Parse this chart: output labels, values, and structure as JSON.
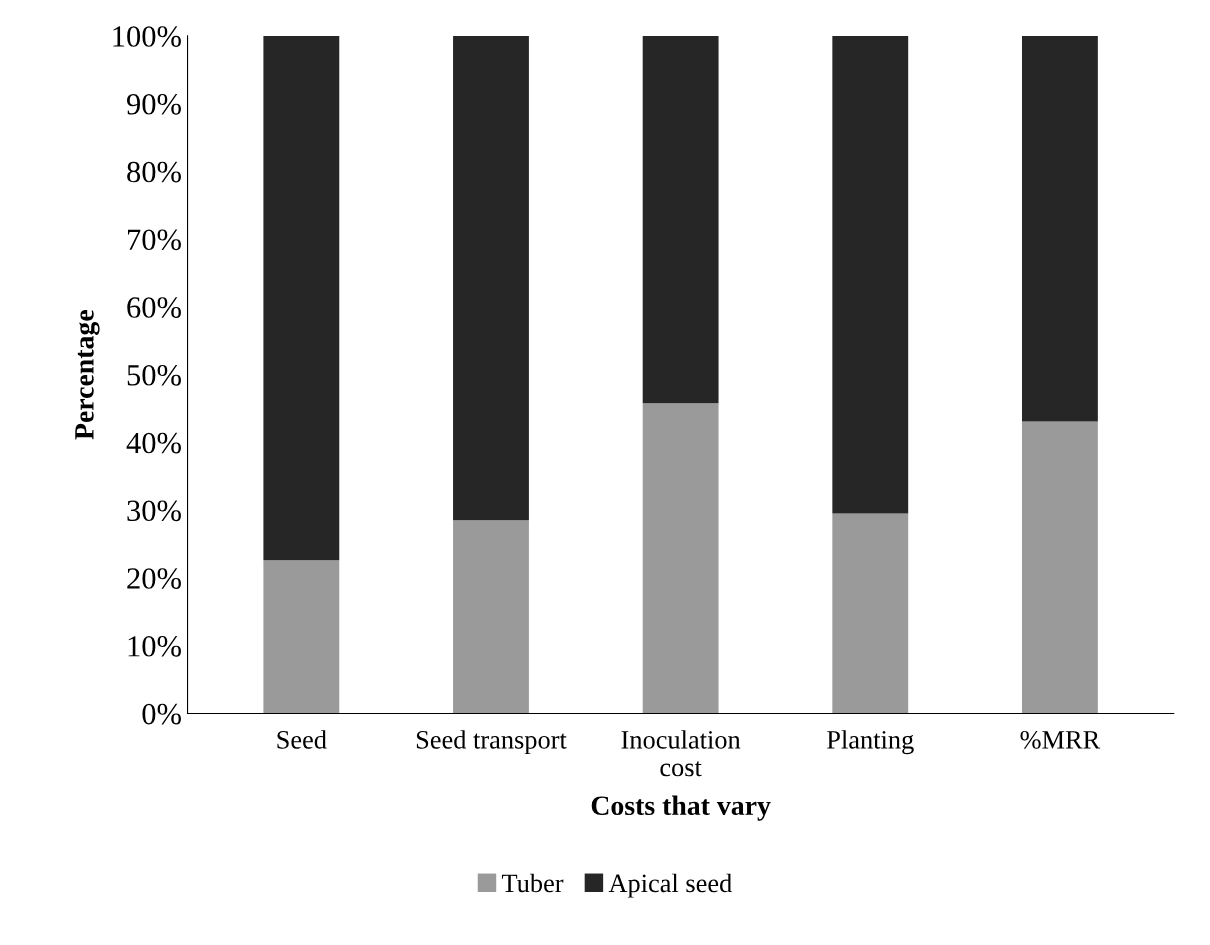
{
  "chart_data": {
    "type": "bar",
    "stacked": true,
    "xlabel": "Costs that vary",
    "ylabel": "Percentage",
    "categories": [
      "Seed",
      "Seed transport",
      "Inoculation\ncost",
      "Planting",
      "%MRR"
    ],
    "series": [
      {
        "name": "Tuber",
        "color": "#9a9a9a",
        "values": [
          22.6,
          28.5,
          45.8,
          29.5,
          43.1
        ]
      },
      {
        "name": "Apical seed",
        "color": "#262626",
        "values": [
          77.4,
          71.5,
          54.2,
          70.5,
          56.9
        ]
      }
    ],
    "ylim": [
      0,
      100
    ],
    "yticks": [
      {
        "value": 0,
        "label": "0%"
      },
      {
        "value": 10,
        "label": "10%"
      },
      {
        "value": 20,
        "label": "20%"
      },
      {
        "value": 30,
        "label": "30%"
      },
      {
        "value": 40,
        "label": "40%"
      },
      {
        "value": 50,
        "label": "50%"
      },
      {
        "value": 60,
        "label": "60%"
      },
      {
        "value": 70,
        "label": "70%"
      },
      {
        "value": 80,
        "label": "80%"
      },
      {
        "value": 90,
        "label": "90%"
      },
      {
        "value": 100,
        "label": "100%"
      }
    ],
    "grid": false,
    "legend": "bottom"
  }
}
